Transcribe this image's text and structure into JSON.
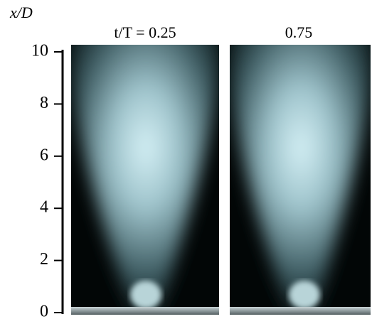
{
  "axis": {
    "label": "x/D",
    "ylim": [
      0,
      10
    ],
    "yticks": [
      0,
      2,
      4,
      6,
      8,
      10
    ]
  },
  "panels": [
    {
      "title": "t/T = 0.25"
    },
    {
      "title": "0.75"
    }
  ]
}
